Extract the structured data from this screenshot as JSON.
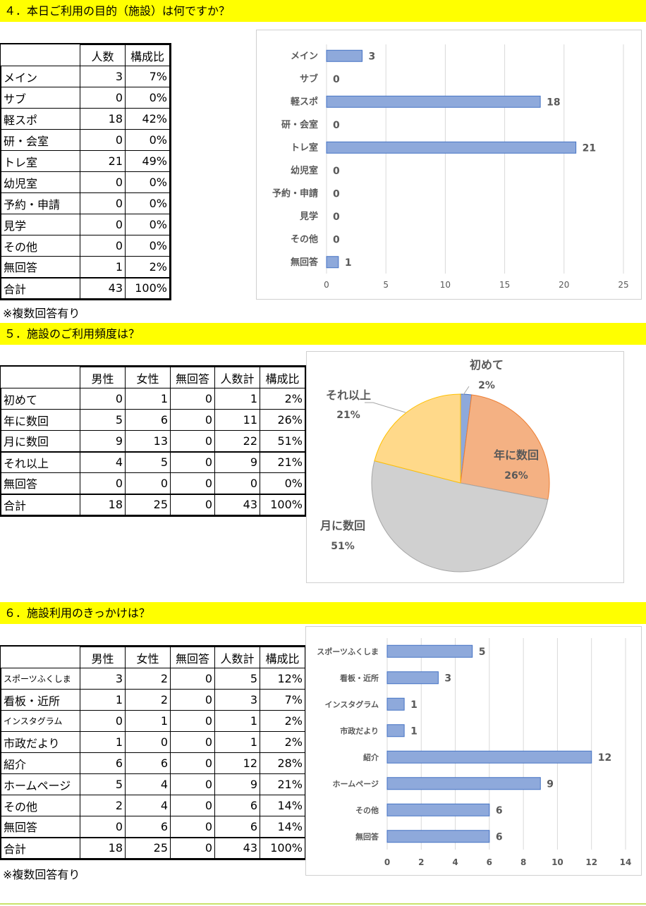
{
  "q4": {
    "title": "４．本日ご利用の目的（施設）は何ですか？",
    "headers": [
      "人数",
      "構成比"
    ],
    "rows": [
      {
        "label": "メイン",
        "count": "3",
        "ratio": "7%"
      },
      {
        "label": "サブ",
        "count": "0",
        "ratio": "0%"
      },
      {
        "label": "軽スポ",
        "count": "18",
        "ratio": "42%"
      },
      {
        "label": "研・会室",
        "count": "0",
        "ratio": "0%"
      },
      {
        "label": "トレ室",
        "count": "21",
        "ratio": "49%"
      },
      {
        "label": "幼児室",
        "count": "0",
        "ratio": "0%"
      },
      {
        "label": "予約・申請",
        "count": "0",
        "ratio": "0%"
      },
      {
        "label": "見学",
        "count": "0",
        "ratio": "0%"
      },
      {
        "label": "その他",
        "count": "0",
        "ratio": "0%"
      },
      {
        "label": "無回答",
        "count": "1",
        "ratio": "2%"
      }
    ],
    "total": {
      "label": "合計",
      "count": "43",
      "ratio": "100%"
    },
    "note": "※複数回答有り"
  },
  "q5": {
    "title": "５．施設のご利用頻度は？",
    "headers": [
      "男性",
      "女性",
      "無回答",
      "人数計",
      "構成比"
    ],
    "rows": [
      {
        "label": "初めて",
        "m": "0",
        "f": "1",
        "n": "0",
        "sum": "1",
        "ratio": "2%"
      },
      {
        "label": "年に数回",
        "m": "5",
        "f": "6",
        "n": "0",
        "sum": "11",
        "ratio": "26%"
      },
      {
        "label": "月に数回",
        "m": "9",
        "f": "13",
        "n": "0",
        "sum": "22",
        "ratio": "51%"
      },
      {
        "label": "それ以上",
        "m": "4",
        "f": "5",
        "n": "0",
        "sum": "9",
        "ratio": "21%"
      },
      {
        "label": "無回答",
        "m": "0",
        "f": "0",
        "n": "0",
        "sum": "0",
        "ratio": "0%"
      }
    ],
    "total": {
      "label": "合計",
      "m": "18",
      "f": "25",
      "n": "0",
      "sum": "43",
      "ratio": "100%"
    }
  },
  "q6": {
    "title": "６．施設利用のきっかけは？",
    "headers": [
      "男性",
      "女性",
      "無回答",
      "人数計",
      "構成比"
    ],
    "rows": [
      {
        "label": "スポーツふくしま",
        "m": "3",
        "f": "2",
        "n": "0",
        "sum": "5",
        "ratio": "12%"
      },
      {
        "label": "看板・近所",
        "m": "1",
        "f": "2",
        "n": "0",
        "sum": "3",
        "ratio": "7%"
      },
      {
        "label": "インスタグラム",
        "m": "0",
        "f": "1",
        "n": "0",
        "sum": "1",
        "ratio": "2%"
      },
      {
        "label": "市政だより",
        "m": "1",
        "f": "0",
        "n": "0",
        "sum": "1",
        "ratio": "2%"
      },
      {
        "label": "紹介",
        "m": "6",
        "f": "6",
        "n": "0",
        "sum": "12",
        "ratio": "28%"
      },
      {
        "label": "ホームページ",
        "m": "5",
        "f": "4",
        "n": "0",
        "sum": "9",
        "ratio": "21%"
      },
      {
        "label": "その他",
        "m": "2",
        "f": "4",
        "n": "0",
        "sum": "6",
        "ratio": "14%"
      },
      {
        "label": "無回答",
        "m": "0",
        "f": "6",
        "n": "0",
        "sum": "6",
        "ratio": "14%"
      }
    ],
    "total": {
      "label": "合計",
      "m": "18",
      "f": "25",
      "n": "0",
      "sum": "43",
      "ratio": "100%"
    },
    "note": "※複数回答有り"
  },
  "chart_data": [
    {
      "type": "bar",
      "orientation": "horizontal",
      "categories": [
        "メイン",
        "サブ",
        "軽スポ",
        "研・会室",
        "トレ室",
        "幼児室",
        "予約・申請",
        "見学",
        "その他",
        "無回答"
      ],
      "values": [
        3,
        0,
        18,
        0,
        21,
        0,
        0,
        0,
        0,
        1
      ],
      "xlim": [
        0,
        25
      ],
      "xticks": [
        "0",
        "5",
        "10",
        "15",
        "20",
        "25"
      ],
      "grid": "vertical",
      "color": "#8ea9db"
    },
    {
      "type": "pie",
      "categories": [
        "初めて",
        "年に数回",
        "月に数回",
        "それ以上"
      ],
      "values": [
        2,
        26,
        51,
        21
      ],
      "labels": [
        "2%",
        "26%",
        "51%",
        "21%"
      ],
      "colors": [
        "#8ea9db",
        "#f4b183",
        "#d0d0d0",
        "#ffd98a"
      ]
    },
    {
      "type": "bar",
      "orientation": "horizontal",
      "categories": [
        "スポーツふくしま",
        "看板・近所",
        "インスタグラム",
        "市政だより",
        "紹介",
        "ホームページ",
        "その他",
        "無回答"
      ],
      "values": [
        5,
        3,
        1,
        1,
        12,
        9,
        6,
        6
      ],
      "xlim": [
        0,
        14
      ],
      "xticks": [
        "0",
        "2",
        "4",
        "6",
        "8",
        "10",
        "12",
        "14"
      ],
      "grid": "vertical",
      "color": "#8ea9db"
    }
  ]
}
